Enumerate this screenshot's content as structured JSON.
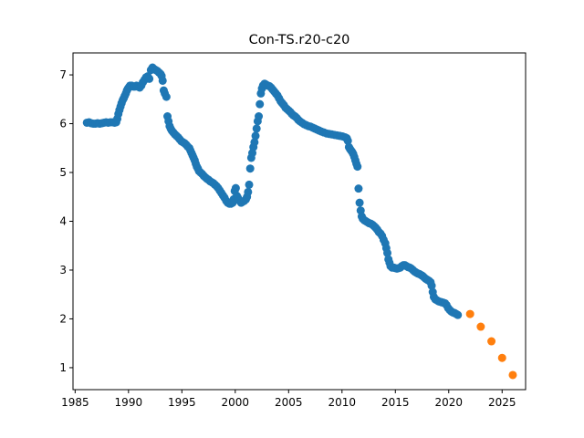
{
  "chart_data": {
    "type": "scatter",
    "title": "Con-TS.r20-c20",
    "xlabel": "",
    "ylabel": "",
    "xlim": [
      1984.8,
      2027.2
    ],
    "ylim": [
      0.55,
      7.45
    ],
    "xticks": [
      1985,
      1990,
      1995,
      2000,
      2005,
      2010,
      2015,
      2020,
      2025
    ],
    "yticks": [
      1,
      2,
      3,
      4,
      5,
      6,
      7
    ],
    "grid": false,
    "legend": "none",
    "series": [
      {
        "color": "#1f77b4",
        "points": [
          [
            1986.1,
            6.02
          ],
          [
            1986.3,
            6.03
          ],
          [
            1986.5,
            6.01
          ],
          [
            1986.7,
            6.0
          ],
          [
            1986.9,
            6.0
          ],
          [
            1987.1,
            6.01
          ],
          [
            1987.3,
            6.0
          ],
          [
            1987.5,
            6.01
          ],
          [
            1987.7,
            6.02
          ],
          [
            1987.9,
            6.03
          ],
          [
            1988.1,
            6.02
          ],
          [
            1988.3,
            6.03
          ],
          [
            1988.5,
            6.03
          ],
          [
            1988.7,
            6.02
          ],
          [
            1988.85,
            6.03
          ],
          [
            1988.95,
            6.1
          ],
          [
            1989.05,
            6.2
          ],
          [
            1989.15,
            6.28
          ],
          [
            1989.25,
            6.35
          ],
          [
            1989.35,
            6.42
          ],
          [
            1989.45,
            6.48
          ],
          [
            1989.55,
            6.52
          ],
          [
            1989.65,
            6.57
          ],
          [
            1989.75,
            6.62
          ],
          [
            1989.85,
            6.68
          ],
          [
            1989.95,
            6.72
          ],
          [
            1990.05,
            6.75
          ],
          [
            1990.15,
            6.78
          ],
          [
            1990.3,
            6.78
          ],
          [
            1990.45,
            6.76
          ],
          [
            1990.6,
            6.76
          ],
          [
            1990.75,
            6.78
          ],
          [
            1990.9,
            6.76
          ],
          [
            1991.05,
            6.74
          ],
          [
            1991.2,
            6.78
          ],
          [
            1991.35,
            6.85
          ],
          [
            1991.5,
            6.9
          ],
          [
            1991.65,
            6.95
          ],
          [
            1991.8,
            6.97
          ],
          [
            1991.95,
            6.92
          ],
          [
            1992.1,
            7.1
          ],
          [
            1992.25,
            7.15
          ],
          [
            1992.4,
            7.12
          ],
          [
            1992.55,
            7.1
          ],
          [
            1992.7,
            7.08
          ],
          [
            1992.85,
            7.05
          ],
          [
            1993.0,
            7.02
          ],
          [
            1993.1,
            6.98
          ],
          [
            1993.2,
            6.88
          ],
          [
            1993.3,
            6.68
          ],
          [
            1993.4,
            6.62
          ],
          [
            1993.55,
            6.55
          ],
          [
            1993.65,
            6.15
          ],
          [
            1993.75,
            6.05
          ],
          [
            1993.85,
            5.95
          ],
          [
            1993.95,
            5.9
          ],
          [
            1994.05,
            5.86
          ],
          [
            1994.2,
            5.82
          ],
          [
            1994.35,
            5.78
          ],
          [
            1994.5,
            5.75
          ],
          [
            1994.65,
            5.72
          ],
          [
            1994.8,
            5.68
          ],
          [
            1994.95,
            5.64
          ],
          [
            1995.1,
            5.62
          ],
          [
            1995.25,
            5.6
          ],
          [
            1995.4,
            5.57
          ],
          [
            1995.55,
            5.53
          ],
          [
            1995.7,
            5.5
          ],
          [
            1995.8,
            5.45
          ],
          [
            1995.9,
            5.4
          ],
          [
            1996.0,
            5.35
          ],
          [
            1996.1,
            5.3
          ],
          [
            1996.2,
            5.25
          ],
          [
            1996.3,
            5.18
          ],
          [
            1996.4,
            5.12
          ],
          [
            1996.5,
            5.08
          ],
          [
            1996.6,
            5.03
          ],
          [
            1996.75,
            5.0
          ],
          [
            1996.9,
            4.97
          ],
          [
            1997.05,
            4.93
          ],
          [
            1997.2,
            4.9
          ],
          [
            1997.35,
            4.87
          ],
          [
            1997.5,
            4.85
          ],
          [
            1997.65,
            4.82
          ],
          [
            1997.8,
            4.8
          ],
          [
            1997.95,
            4.78
          ],
          [
            1998.1,
            4.75
          ],
          [
            1998.25,
            4.72
          ],
          [
            1998.4,
            4.68
          ],
          [
            1998.55,
            4.63
          ],
          [
            1998.7,
            4.58
          ],
          [
            1998.85,
            4.53
          ],
          [
            1999.0,
            4.48
          ],
          [
            1999.15,
            4.42
          ],
          [
            1999.3,
            4.38
          ],
          [
            1999.45,
            4.36
          ],
          [
            1999.6,
            4.36
          ],
          [
            1999.75,
            4.38
          ],
          [
            1999.85,
            4.45
          ],
          [
            1999.95,
            4.62
          ],
          [
            2000.05,
            4.68
          ],
          [
            2000.15,
            4.52
          ],
          [
            2000.25,
            4.48
          ],
          [
            2000.4,
            4.42
          ],
          [
            2000.55,
            4.38
          ],
          [
            2000.7,
            4.4
          ],
          [
            2000.85,
            4.42
          ],
          [
            2001.0,
            4.45
          ],
          [
            2001.1,
            4.5
          ],
          [
            2001.2,
            4.6
          ],
          [
            2001.3,
            4.75
          ],
          [
            2001.4,
            5.08
          ],
          [
            2001.5,
            5.3
          ],
          [
            2001.6,
            5.4
          ],
          [
            2001.7,
            5.52
          ],
          [
            2001.8,
            5.62
          ],
          [
            2001.9,
            5.75
          ],
          [
            2002.0,
            5.9
          ],
          [
            2002.1,
            6.05
          ],
          [
            2002.2,
            6.15
          ],
          [
            2002.3,
            6.4
          ],
          [
            2002.4,
            6.62
          ],
          [
            2002.5,
            6.72
          ],
          [
            2002.6,
            6.78
          ],
          [
            2002.75,
            6.82
          ],
          [
            2002.9,
            6.8
          ],
          [
            2003.05,
            6.78
          ],
          [
            2003.2,
            6.77
          ],
          [
            2003.35,
            6.74
          ],
          [
            2003.5,
            6.7
          ],
          [
            2003.65,
            6.66
          ],
          [
            2003.8,
            6.62
          ],
          [
            2003.95,
            6.58
          ],
          [
            2004.1,
            6.52
          ],
          [
            2004.25,
            6.46
          ],
          [
            2004.4,
            6.42
          ],
          [
            2004.55,
            6.38
          ],
          [
            2004.7,
            6.33
          ],
          [
            2004.85,
            6.3
          ],
          [
            2005.0,
            6.27
          ],
          [
            2005.15,
            6.24
          ],
          [
            2005.3,
            6.2
          ],
          [
            2005.45,
            6.17
          ],
          [
            2005.6,
            6.15
          ],
          [
            2005.75,
            6.12
          ],
          [
            2005.9,
            6.08
          ],
          [
            2006.05,
            6.05
          ],
          [
            2006.25,
            6.02
          ],
          [
            2006.45,
            5.99
          ],
          [
            2006.65,
            5.97
          ],
          [
            2006.85,
            5.95
          ],
          [
            2007.05,
            5.94
          ],
          [
            2007.25,
            5.92
          ],
          [
            2007.45,
            5.9
          ],
          [
            2007.65,
            5.88
          ],
          [
            2007.85,
            5.86
          ],
          [
            2008.05,
            5.84
          ],
          [
            2008.3,
            5.82
          ],
          [
            2008.55,
            5.8
          ],
          [
            2008.8,
            5.79
          ],
          [
            2009.05,
            5.78
          ],
          [
            2009.3,
            5.77
          ],
          [
            2009.55,
            5.76
          ],
          [
            2009.8,
            5.75
          ],
          [
            2010.05,
            5.74
          ],
          [
            2010.3,
            5.72
          ],
          [
            2010.45,
            5.7
          ],
          [
            2010.55,
            5.65
          ],
          [
            2010.65,
            5.52
          ],
          [
            2010.75,
            5.48
          ],
          [
            2010.85,
            5.45
          ],
          [
            2010.95,
            5.42
          ],
          [
            2011.05,
            5.38
          ],
          [
            2011.15,
            5.32
          ],
          [
            2011.25,
            5.25
          ],
          [
            2011.35,
            5.18
          ],
          [
            2011.45,
            5.12
          ],
          [
            2011.55,
            4.67
          ],
          [
            2011.65,
            4.38
          ],
          [
            2011.75,
            4.22
          ],
          [
            2011.85,
            4.1
          ],
          [
            2011.95,
            4.05
          ],
          [
            2012.1,
            4.02
          ],
          [
            2012.25,
            4.0
          ],
          [
            2012.4,
            3.98
          ],
          [
            2012.55,
            3.96
          ],
          [
            2012.7,
            3.95
          ],
          [
            2012.85,
            3.93
          ],
          [
            2013.0,
            3.9
          ],
          [
            2013.15,
            3.87
          ],
          [
            2013.3,
            3.83
          ],
          [
            2013.45,
            3.78
          ],
          [
            2013.6,
            3.75
          ],
          [
            2013.75,
            3.7
          ],
          [
            2013.9,
            3.62
          ],
          [
            2014.05,
            3.55
          ],
          [
            2014.15,
            3.45
          ],
          [
            2014.25,
            3.35
          ],
          [
            2014.35,
            3.22
          ],
          [
            2014.45,
            3.15
          ],
          [
            2014.55,
            3.08
          ],
          [
            2014.7,
            3.05
          ],
          [
            2014.85,
            3.05
          ],
          [
            2015.0,
            3.04
          ],
          [
            2015.15,
            3.03
          ],
          [
            2015.3,
            3.04
          ],
          [
            2015.45,
            3.05
          ],
          [
            2015.6,
            3.08
          ],
          [
            2015.75,
            3.1
          ],
          [
            2015.9,
            3.1
          ],
          [
            2016.05,
            3.08
          ],
          [
            2016.2,
            3.06
          ],
          [
            2016.35,
            3.05
          ],
          [
            2016.5,
            3.03
          ],
          [
            2016.65,
            3.0
          ],
          [
            2016.8,
            2.97
          ],
          [
            2016.95,
            2.95
          ],
          [
            2017.1,
            2.93
          ],
          [
            2017.25,
            2.92
          ],
          [
            2017.4,
            2.9
          ],
          [
            2017.55,
            2.88
          ],
          [
            2017.7,
            2.85
          ],
          [
            2017.85,
            2.82
          ],
          [
            2018.0,
            2.8
          ],
          [
            2018.15,
            2.78
          ],
          [
            2018.3,
            2.75
          ],
          [
            2018.4,
            2.68
          ],
          [
            2018.5,
            2.55
          ],
          [
            2018.6,
            2.45
          ],
          [
            2018.75,
            2.4
          ],
          [
            2018.9,
            2.38
          ],
          [
            2019.05,
            2.36
          ],
          [
            2019.2,
            2.35
          ],
          [
            2019.35,
            2.34
          ],
          [
            2019.5,
            2.33
          ],
          [
            2019.65,
            2.32
          ],
          [
            2019.8,
            2.28
          ],
          [
            2019.95,
            2.22
          ],
          [
            2020.1,
            2.18
          ],
          [
            2020.25,
            2.15
          ],
          [
            2020.4,
            2.13
          ],
          [
            2020.55,
            2.12
          ],
          [
            2020.7,
            2.1
          ],
          [
            2020.85,
            2.08
          ]
        ]
      },
      {
        "color": "#ff7f0e",
        "points": [
          [
            2022,
            2.1
          ],
          [
            2023,
            1.84
          ],
          [
            2024,
            1.54
          ],
          [
            2025,
            1.2
          ],
          [
            2026,
            0.85
          ]
        ]
      }
    ]
  }
}
